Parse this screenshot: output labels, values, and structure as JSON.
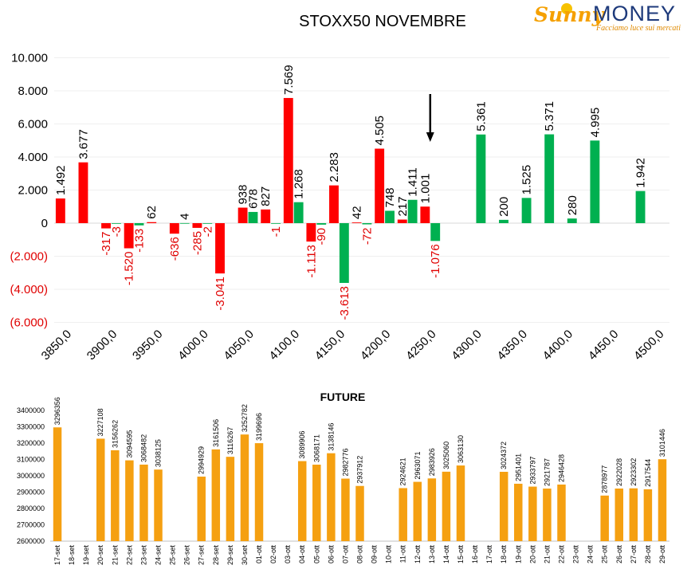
{
  "logo": {
    "part1": "Sunny",
    "part2": "MONEY",
    "tagline": "Facciamo luce sui mercati"
  },
  "chart_data": [
    {
      "type": "bar",
      "title": "STOXX50 NOVEMBRE",
      "xlabel": "",
      "ylabel": "",
      "ylim": [
        -6000,
        10000
      ],
      "y_ticks": [
        10000,
        8000,
        6000,
        4000,
        2000,
        0,
        -2000,
        -4000,
        -6000
      ],
      "y_tick_labels": [
        "10.000",
        "8.000",
        "6.000",
        "4.000",
        "2.000",
        "0",
        "(2.000)",
        "(4.000)",
        "(6.000)"
      ],
      "strikes": [
        3850,
        3875,
        3900,
        3925,
        3950,
        3975,
        4000,
        4025,
        4050,
        4075,
        4100,
        4125,
        4150,
        4175,
        4200,
        4225,
        4250,
        4275,
        4300,
        4325,
        4350,
        4375,
        4400,
        4425,
        4450,
        4475,
        4500
      ],
      "x_tick_labels": [
        "3850,0",
        "3900,0",
        "3950,0",
        "4000,0",
        "4050,0",
        "4100,0",
        "4150,0",
        "4200,0",
        "4250,0",
        "4300,0",
        "4350,0",
        "4400,0",
        "4450,0",
        "4500,0"
      ],
      "series": [
        {
          "color": "#ff0000",
          "values": [
            1492,
            3677,
            -317,
            -1520,
            62,
            -636,
            -285,
            -3041,
            938,
            827,
            7569,
            -1113,
            2283,
            42,
            4505,
            217,
            1001,
            null,
            null,
            null,
            null,
            null,
            null,
            null,
            null,
            null,
            null
          ],
          "labels": [
            "1.492",
            "3.677",
            "-317",
            "-1.520",
            "62",
            "-636",
            "-285",
            "-3.041",
            "938",
            "827",
            "7.569",
            "-1.113",
            "2.283",
            "42",
            "4.505",
            "217",
            "1.001",
            "",
            "",
            "",
            "",
            "",
            "",
            "",
            "",
            "",
            ""
          ]
        },
        {
          "color": "#00b050",
          "values": [
            null,
            null,
            -3,
            -133,
            null,
            4,
            -2,
            null,
            678,
            -1,
            1268,
            -90,
            -3613,
            -72,
            748,
            1411,
            -1076,
            null,
            5361,
            200,
            1525,
            5371,
            280,
            4995,
            null,
            1942,
            null
          ],
          "labels": [
            "",
            "",
            "-3",
            "-133",
            "",
            "4",
            "-2",
            "",
            "678",
            "-1",
            "1.268",
            "-90",
            "-3.613",
            "-72",
            "748",
            "1.411",
            "-1.076",
            "",
            "5.361",
            "200",
            "1.525",
            "5.371",
            "280",
            "4.995",
            "",
            "1.942",
            ""
          ]
        }
      ],
      "annotation": {
        "type": "arrow-down",
        "at_strike": 4250
      }
    },
    {
      "type": "bar",
      "title": "FUTURE",
      "xlabel": "",
      "ylabel": "",
      "ylim": [
        2600000,
        3400000
      ],
      "y_ticks": [
        3400000,
        3300000,
        3200000,
        3100000,
        3000000,
        2900000,
        2800000,
        2700000,
        2600000
      ],
      "color": "#f5a011",
      "categories": [
        "17-set",
        "18-set",
        "19-set",
        "20-set",
        "21-set",
        "22-set",
        "23-set",
        "24-set",
        "25-set",
        "26-set",
        "27-set",
        "28-set",
        "29-set",
        "30-set",
        "01-ott",
        "02-ott",
        "03-ott",
        "04-ott",
        "05-ott",
        "06-ott",
        "07-ott",
        "08-ott",
        "09-ott",
        "10-ott",
        "11-ott",
        "12-ott",
        "13-ott",
        "14-ott",
        "15-ott",
        "16-ott",
        "17-ott",
        "18-ott",
        "19-ott",
        "20-ott",
        "21-ott",
        "22-ott",
        "23-ott",
        "24-ott",
        "25-ott",
        "26-ott",
        "27-ott",
        "28-ott",
        "29-ott"
      ],
      "values": [
        3296356,
        null,
        null,
        3227108,
        3156262,
        3094595,
        3068482,
        3038125,
        null,
        null,
        2994929,
        3161506,
        3116267,
        3252782,
        3199696,
        null,
        null,
        3089906,
        3068171,
        3138146,
        2982776,
        2937912,
        null,
        null,
        2924621,
        2963071,
        2983926,
        3025060,
        3063130,
        null,
        null,
        3024372,
        2951401,
        2933797,
        2921787,
        2946428,
        null,
        null,
        2878977,
        2922028,
        2923302,
        2917544,
        3101446
      ]
    }
  ]
}
